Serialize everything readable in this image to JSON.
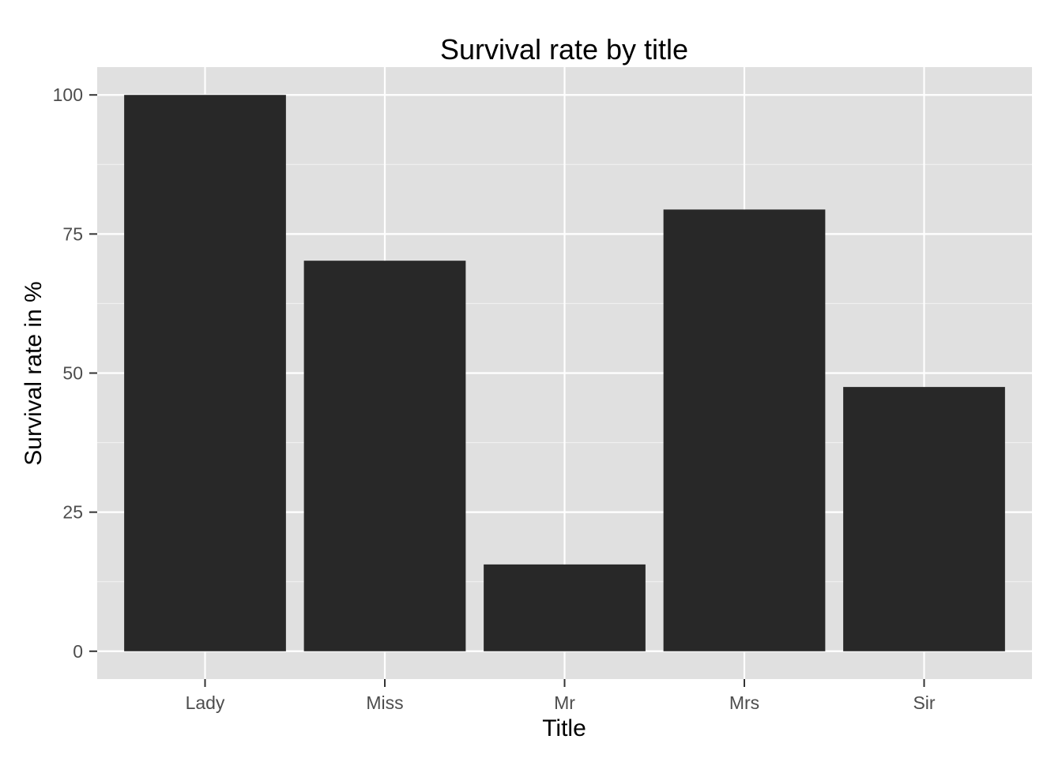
{
  "chart_data": {
    "type": "bar",
    "title": "Survival rate by title",
    "xlabel": "Title",
    "ylabel": "Survival rate in %",
    "categories": [
      "Lady",
      "Miss",
      "Mr",
      "Mrs",
      "Sir"
    ],
    "values": [
      100,
      70.2,
      15.6,
      79.4,
      47.5
    ],
    "ylim": [
      -5,
      105
    ],
    "yticks": [
      0,
      25,
      50,
      75,
      100
    ],
    "grid": true,
    "legend": "none",
    "colors": {
      "panel": "#e0e0e0",
      "bar": "#282828",
      "grid": "#ffffff"
    }
  }
}
